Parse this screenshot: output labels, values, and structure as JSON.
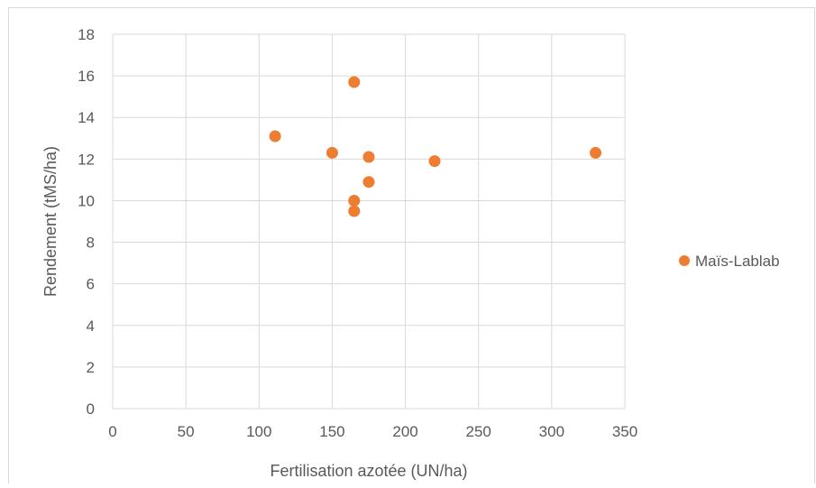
{
  "chart_data": {
    "type": "scatter",
    "title": "",
    "xlabel": "Fertilisation azotée (UN/ha)",
    "ylabel": "Rendement (tMS/ha)",
    "xlim": [
      0,
      350
    ],
    "ylim": [
      0,
      18
    ],
    "x_ticks": [
      0,
      50,
      100,
      150,
      200,
      250,
      300,
      350
    ],
    "y_ticks": [
      0,
      2,
      4,
      6,
      8,
      10,
      12,
      14,
      16,
      18
    ],
    "grid": true,
    "legend_position": "right",
    "series": [
      {
        "name": "Maïs-Lablab",
        "color": "#ED7D31",
        "x": [
          111,
          150,
          165,
          165,
          165,
          175,
          175,
          220,
          330
        ],
        "y": [
          13.1,
          12.3,
          15.7,
          10.0,
          9.5,
          12.1,
          10.9,
          11.9,
          12.3
        ]
      }
    ]
  }
}
